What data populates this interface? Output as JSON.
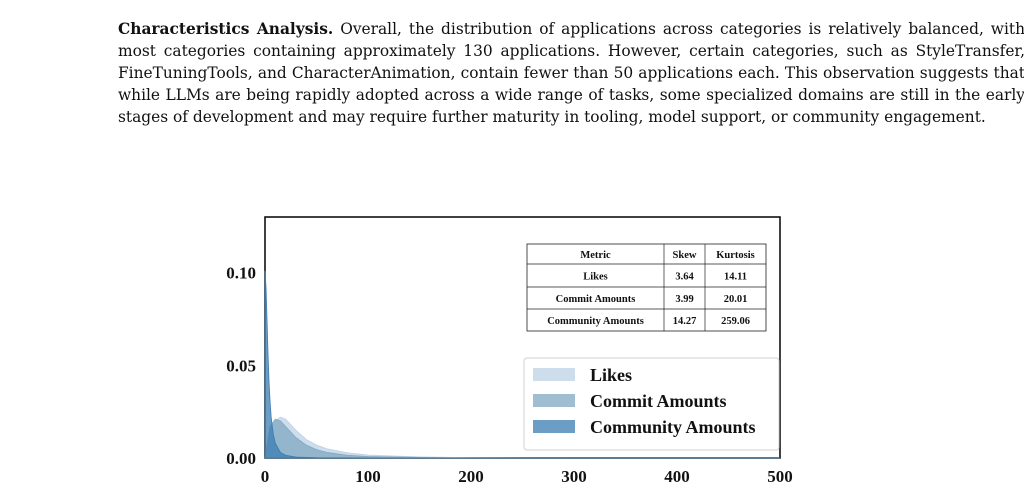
{
  "paragraph": {
    "lead": "Characteristics Analysis.",
    "body": " Overall, the distribution of applications across categories is relatively balanced, with most categories containing approximately 130 applications. However, certain categories, such as StyleTransfer, FineTuningTools, and CharacterAnimation, contain fewer than 50 applications each. This observation suggests that while LLMs are being rapidly adopted across a wide range of tasks, some specialized domains are still in the early stages of development and may require further maturity in tooling, model support, or community engagement."
  },
  "chart_data": {
    "type": "area",
    "title": "",
    "xlabel": "",
    "ylabel": "",
    "xlim": [
      0,
      500
    ],
    "ylim": [
      0,
      0.13
    ],
    "x_ticks": [
      0,
      100,
      200,
      300,
      400,
      500
    ],
    "y_ticks": [
      0.0,
      0.05,
      0.1
    ],
    "grid": false,
    "legend": "bottom-right",
    "series": [
      {
        "name": "Likes",
        "color": "#bcd2e6",
        "x": [
          0,
          5,
          10,
          15,
          20,
          25,
          30,
          40,
          50,
          60,
          80,
          100,
          150,
          200,
          300,
          500
        ],
        "y": [
          0.0,
          0.015,
          0.02,
          0.022,
          0.021,
          0.018,
          0.015,
          0.01,
          0.007,
          0.005,
          0.0028,
          0.0016,
          0.0006,
          0.0002,
          0.0,
          0.0
        ]
      },
      {
        "name": "Commit Amounts",
        "color": "#7fa8c3",
        "x": [
          0,
          5,
          10,
          15,
          20,
          25,
          30,
          40,
          50,
          60,
          80,
          100,
          150,
          200,
          300,
          500
        ],
        "y": [
          0.0,
          0.017,
          0.021,
          0.02,
          0.017,
          0.014,
          0.011,
          0.007,
          0.0045,
          0.003,
          0.0015,
          0.0008,
          0.0003,
          0.0001,
          0.0,
          0.0
        ]
      },
      {
        "name": "Community Amounts",
        "color": "#3b7cb0",
        "x": [
          0,
          1,
          2,
          3,
          4,
          5,
          6,
          8,
          10,
          15,
          20,
          30,
          50,
          100,
          500
        ],
        "y": [
          0.101,
          0.092,
          0.074,
          0.055,
          0.04,
          0.03,
          0.022,
          0.013,
          0.008,
          0.003,
          0.0015,
          0.0005,
          0.0001,
          0.0,
          0.0
        ]
      }
    ],
    "table": {
      "headers": [
        "Metric",
        "Skew",
        "Kurtosis"
      ],
      "rows": [
        [
          "Likes",
          "3.64",
          "14.11"
        ],
        [
          "Commit Amounts",
          "3.99",
          "20.01"
        ],
        [
          "Community Amounts",
          "14.27",
          "259.06"
        ]
      ]
    }
  }
}
